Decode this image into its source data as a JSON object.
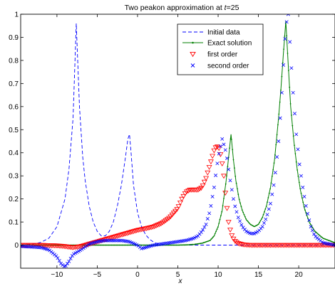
{
  "chart_data": {
    "type": "line",
    "title_prefix": "Two peakon approximation at ",
    "title_var": "t",
    "title_suffix": "=25",
    "xlabel": "x",
    "ylabel": "",
    "xlim": [
      -14.5,
      24.5
    ],
    "ylim": [
      -0.1,
      1.0
    ],
    "xticks": [
      -10,
      -5,
      0,
      5,
      10,
      15,
      20
    ],
    "xtick_labels": [
      "−10",
      "−5",
      "0",
      "5",
      "10",
      "15",
      "20"
    ],
    "yticks": [
      0,
      0.1,
      0.2,
      0.3,
      0.4,
      0.5,
      0.6,
      0.7,
      0.8,
      0.9,
      1
    ],
    "ytick_labels": [
      "0",
      "0.1",
      "0.2",
      "0.3",
      "0.4",
      "0.5",
      "0.6",
      "0.7",
      "0.8",
      "0.9",
      "1"
    ],
    "grid": false,
    "legend_position": "top-right",
    "colors": {
      "initial": "#0000ff",
      "exact": "#007f00",
      "first": "#ff0000",
      "second": "#0000ff"
    },
    "series": [
      {
        "name": "Initial data",
        "style": "dashed",
        "x": [
          -14.5,
          -13,
          -12,
          -11,
          -10,
          -9,
          -8.5,
          -8,
          -7.6,
          -7.2,
          -6.8,
          -6.5,
          -6,
          -5.5,
          -5,
          -4.5,
          -4,
          -3.5,
          -3,
          -2.5,
          -2,
          -1.5,
          -1.2,
          -1,
          -0.8,
          -0.5,
          0,
          0.5,
          1,
          1.5,
          2,
          2.5,
          3,
          4,
          6,
          10,
          15,
          20,
          24.5
        ],
        "y": [
          0.0,
          0.004,
          0.012,
          0.03,
          0.08,
          0.2,
          0.33,
          0.55,
          0.96,
          0.6,
          0.38,
          0.28,
          0.17,
          0.1,
          0.06,
          0.04,
          0.04,
          0.06,
          0.1,
          0.17,
          0.26,
          0.38,
          0.46,
          0.48,
          0.4,
          0.26,
          0.14,
          0.08,
          0.045,
          0.025,
          0.013,
          0.006,
          0.002,
          0.0,
          0.0,
          0.0,
          0.0,
          0.0,
          0.0
        ]
      },
      {
        "name": "Exact solution",
        "style": "solid-dots",
        "x": [
          -14.5,
          -10,
          -5,
          0,
          3,
          5,
          6,
          7,
          8,
          9,
          9.5,
          10,
          10.5,
          11,
          11.3,
          11.6,
          11.9,
          12.2,
          12.6,
          13,
          13.5,
          14,
          14.5,
          15,
          15.5,
          16,
          16.5,
          17,
          17.5,
          17.8,
          18.1,
          18.4,
          18.7,
          19,
          19.4,
          19.8,
          20.2,
          20.7,
          21.3,
          22,
          23,
          24.5
        ],
        "y": [
          0.0,
          0.0,
          0.0,
          0.0,
          0.0,
          0.0,
          0.001,
          0.003,
          0.008,
          0.02,
          0.04,
          0.08,
          0.15,
          0.28,
          0.38,
          0.48,
          0.37,
          0.28,
          0.2,
          0.15,
          0.11,
          0.09,
          0.08,
          0.09,
          0.12,
          0.17,
          0.25,
          0.37,
          0.55,
          0.68,
          0.83,
          0.97,
          0.78,
          0.6,
          0.45,
          0.33,
          0.24,
          0.16,
          0.1,
          0.06,
          0.03,
          0.01
        ]
      },
      {
        "name": "first order",
        "marker": "triangle-down",
        "x": [
          -14.5,
          -12,
          -10,
          -9,
          -8.5,
          -8,
          -7,
          -6,
          -5,
          -4,
          -3,
          -2,
          -1,
          0,
          1,
          2,
          3,
          4,
          5,
          5.5,
          6,
          6.5,
          7,
          7.5,
          8,
          8.5,
          9,
          9.5,
          9.8,
          10.1,
          10.4,
          10.7,
          11,
          11.3,
          11.6,
          12,
          12.5,
          13,
          14,
          15,
          17,
          19,
          22,
          24.5
        ],
        "y": [
          0.0,
          0.0,
          -0.002,
          -0.005,
          -0.008,
          -0.01,
          -0.005,
          0.005,
          0.015,
          0.025,
          0.035,
          0.045,
          0.055,
          0.065,
          0.072,
          0.08,
          0.095,
          0.12,
          0.16,
          0.2,
          0.23,
          0.24,
          0.24,
          0.24,
          0.25,
          0.29,
          0.35,
          0.41,
          0.43,
          0.42,
          0.38,
          0.3,
          0.19,
          0.1,
          0.05,
          0.02,
          0.008,
          0.003,
          0.0,
          0.0,
          0.0,
          0.0,
          0.0,
          0.0
        ]
      },
      {
        "name": "second order",
        "marker": "x",
        "x": [
          -14.5,
          -12,
          -11,
          -10,
          -9.5,
          -9,
          -8.5,
          -8,
          -7,
          -6,
          -5,
          -4,
          -3,
          -2,
          -1,
          0,
          0.5,
          1,
          2,
          3,
          4,
          5,
          6,
          7,
          7.5,
          8,
          8.5,
          9,
          9.5,
          10,
          10.5,
          11,
          11.5,
          12,
          12.5,
          13,
          13.5,
          14,
          14.5,
          15,
          15.5,
          16,
          16.5,
          17,
          17.5,
          17.8,
          18.1,
          18.4,
          18.7,
          19,
          19.3,
          19.7,
          20.1,
          20.5,
          21,
          21.5,
          22,
          23,
          24.5
        ],
        "y": [
          -0.005,
          -0.01,
          -0.02,
          -0.05,
          -0.08,
          -0.095,
          -0.07,
          -0.04,
          -0.02,
          0.005,
          0.015,
          0.02,
          0.02,
          0.02,
          0.015,
          0.0,
          -0.015,
          -0.01,
          0.0,
          0.005,
          0.01,
          0.015,
          0.02,
          0.03,
          0.04,
          0.06,
          0.09,
          0.15,
          0.25,
          0.38,
          0.46,
          0.4,
          0.28,
          0.18,
          0.12,
          0.08,
          0.06,
          0.05,
          0.05,
          0.06,
          0.08,
          0.12,
          0.18,
          0.28,
          0.45,
          0.6,
          0.78,
          0.95,
          1.0,
          0.82,
          0.66,
          0.48,
          0.35,
          0.25,
          0.15,
          0.08,
          0.04,
          0.01,
          0.0
        ]
      }
    ]
  }
}
